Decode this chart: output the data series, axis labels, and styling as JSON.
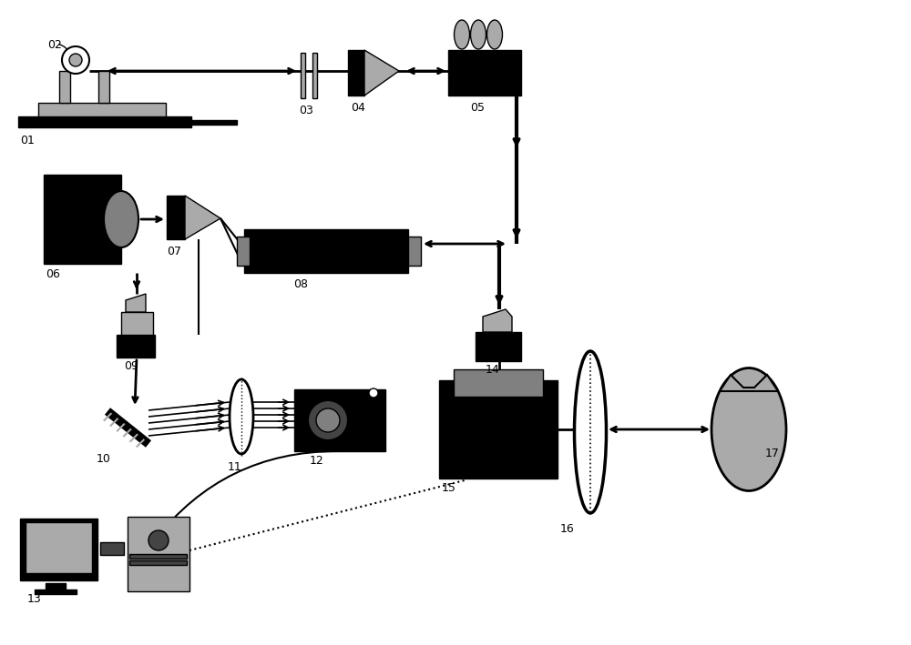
{
  "bg": "#ffffff",
  "black": "#000000",
  "gray": "#808080",
  "lgray": "#aaaaaa",
  "dgray": "#444444",
  "white": "#ffffff"
}
